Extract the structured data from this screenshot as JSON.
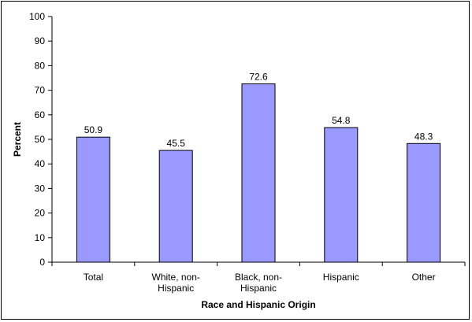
{
  "chart_data": {
    "type": "bar",
    "categories": [
      [
        "Total"
      ],
      [
        "White, non-",
        "Hispanic"
      ],
      [
        "Black, non-",
        "Hispanic"
      ],
      [
        "Hispanic"
      ],
      [
        "Other"
      ]
    ],
    "values": [
      50.9,
      45.5,
      72.6,
      54.8,
      48.3
    ],
    "value_labels": [
      "50.9",
      "45.5",
      "72.6",
      "54.8",
      "48.3"
    ],
    "title": "",
    "xlabel": "Race and Hispanic Origin",
    "ylabel": "Percent",
    "ylim": [
      0,
      100
    ],
    "yticks": [
      0,
      10,
      20,
      30,
      40,
      50,
      60,
      70,
      80,
      90,
      100
    ],
    "grid": false,
    "legend": "none",
    "colors": {
      "bar_fill": "#9999ff",
      "bar_stroke": "#000000",
      "axis": "#000000",
      "background": "#ffffff"
    }
  }
}
